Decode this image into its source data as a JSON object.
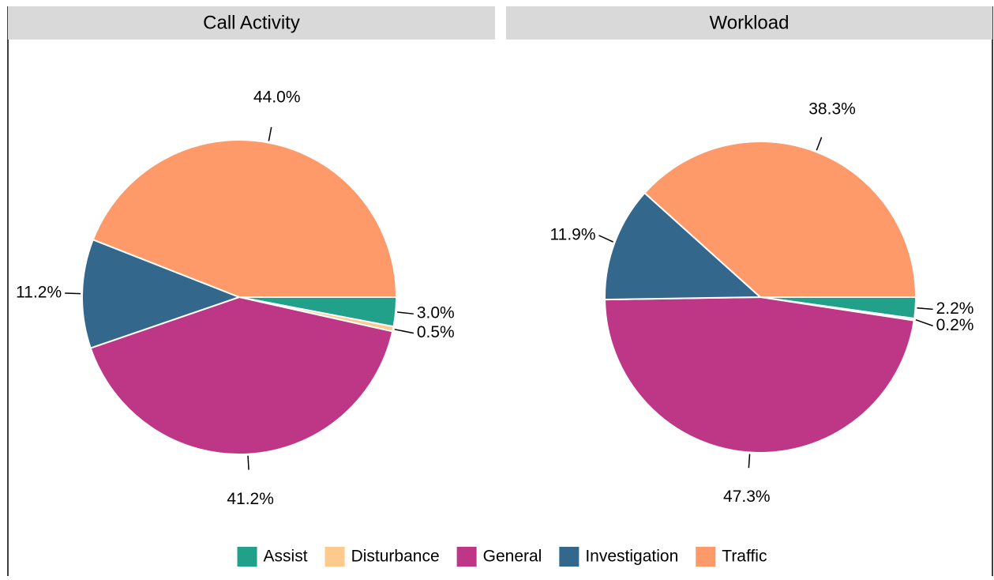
{
  "chart_data": [
    {
      "type": "pie",
      "title": "Call Activity",
      "categories": [
        "Assist",
        "Disturbance",
        "General",
        "Investigation",
        "Traffic"
      ],
      "values": [
        3.0,
        0.5,
        41.2,
        11.2,
        44.0
      ],
      "value_labels": [
        "3.0%",
        "0.5%",
        "41.2%",
        "11.2%",
        "44.0%"
      ],
      "colors": [
        "#21a08a",
        "#fdc98c",
        "#bd3786",
        "#33678c",
        "#fe9969"
      ]
    },
    {
      "type": "pie",
      "title": "Workload",
      "categories": [
        "Assist",
        "Disturbance",
        "General",
        "Investigation",
        "Traffic"
      ],
      "values": [
        2.2,
        0.2,
        47.3,
        11.9,
        38.3
      ],
      "value_labels": [
        "2.2%",
        "0.2%",
        "47.3%",
        "11.9%",
        "38.3%"
      ],
      "colors": [
        "#21a08a",
        "#fdc98c",
        "#bd3786",
        "#33678c",
        "#fe9969"
      ]
    }
  ]
}
